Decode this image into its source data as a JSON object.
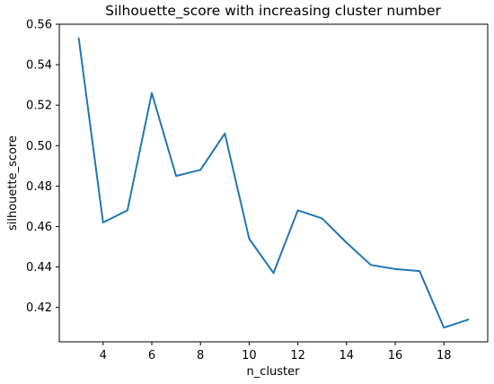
{
  "chart_data": {
    "type": "line",
    "title": "Silhouette_score with increasing cluster number",
    "xlabel": "n_cluster",
    "ylabel": "silhouette_score",
    "xlim": [
      2.2,
      19.8
    ],
    "ylim": [
      0.403,
      0.56
    ],
    "xticks": [
      4,
      6,
      8,
      10,
      12,
      14,
      16,
      18
    ],
    "yticks": [
      0.42,
      0.44,
      0.46,
      0.48,
      0.5,
      0.52,
      0.54,
      0.56
    ],
    "xtick_labels": [
      "4",
      "6",
      "8",
      "10",
      "12",
      "14",
      "16",
      "18"
    ],
    "ytick_labels": [
      "0.42",
      "0.44",
      "0.46",
      "0.48",
      "0.50",
      "0.52",
      "0.54",
      "0.56"
    ],
    "grid": false,
    "series": [
      {
        "color": "#1f77b4",
        "x": [
          3,
          4,
          5,
          6,
          7,
          8,
          9,
          10,
          11,
          12,
          13,
          14,
          15,
          16,
          17,
          18,
          19
        ],
        "y": [
          0.553,
          0.462,
          0.468,
          0.526,
          0.485,
          0.488,
          0.506,
          0.454,
          0.437,
          0.468,
          0.464,
          0.452,
          0.441,
          0.439,
          0.438,
          0.41,
          0.414
        ]
      }
    ]
  }
}
